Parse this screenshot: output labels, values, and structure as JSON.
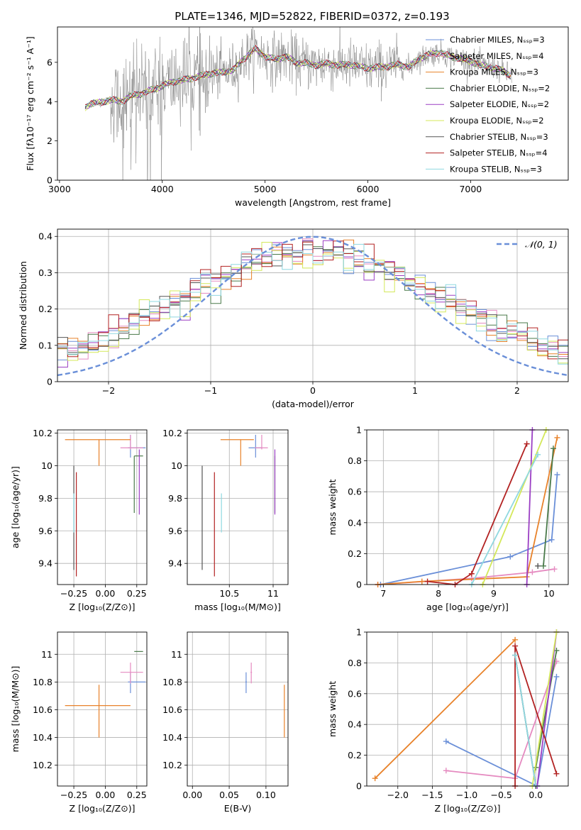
{
  "palette": {
    "chabrier_miles": "#6a8fd8",
    "salpeter_miles": "#e58ac0",
    "kroupa_miles": "#e8822a",
    "chabrier_elodie": "#4a7a4a",
    "salpeter_elodie": "#9b3fc4",
    "kroupa_elodie": "#d4e85a",
    "chabrier_stelib": "#555555",
    "salpeter_stelib": "#b22222",
    "kroupa_stelib": "#8fd8e0",
    "gauss": "#6a8fd8",
    "data": "#808080",
    "grid": "#b0b0b0"
  },
  "chart_data": [
    {
      "id": "spectrum",
      "type": "line",
      "title": "PLATE=1346, MJD=52822, FIBERID=0372, z=0.193",
      "xlabel": "wavelength [Angstrom, rest frame]",
      "ylabel": "Flux [fλ10⁻¹⁷ erg cm⁻² s⁻¹ A⁻¹]",
      "xlim": [
        2980,
        7950
      ],
      "ylim": [
        0,
        7.8
      ],
      "xticks": [
        3000,
        4000,
        5000,
        6000,
        7000
      ],
      "yticks": [
        0,
        2,
        4,
        6
      ],
      "grid": false,
      "legend_position": "right",
      "legend": [
        "Chabrier MILES, Nₛₛₚ=3",
        "Salpeter MILES, Nₛₛₚ=4",
        "Kroupa MILES, Nₛₛₚ=3",
        "Chabrier ELODIE, Nₛₛₚ=2",
        "Salpeter ELODIE, Nₛₛₚ=2",
        "Kroupa ELODIE, Nₛₛₚ=2",
        "Chabrier STELIB, Nₛₛₚ=3",
        "Salpeter STELIB, Nₛₛₚ=4",
        "Kroupa STELIB, Nₛₛₚ=3"
      ],
      "model_continuum": [
        [
          3250,
          3.7
        ],
        [
          3300,
          3.9
        ],
        [
          3400,
          3.95
        ],
        [
          3500,
          4.1
        ],
        [
          3600,
          4.0
        ],
        [
          3700,
          4.3
        ],
        [
          3800,
          4.4
        ],
        [
          3900,
          4.6
        ],
        [
          4000,
          4.8
        ],
        [
          4100,
          5.0
        ],
        [
          4200,
          5.1
        ],
        [
          4300,
          5.2
        ],
        [
          4400,
          5.35
        ],
        [
          4500,
          5.45
        ],
        [
          4600,
          5.5
        ],
        [
          4700,
          5.65
        ],
        [
          4800,
          6.2
        ],
        [
          4900,
          6.7
        ],
        [
          5000,
          6.3
        ],
        [
          5100,
          6.15
        ],
        [
          5200,
          6.3
        ],
        [
          5300,
          6.0
        ],
        [
          5400,
          5.95
        ],
        [
          5500,
          5.85
        ],
        [
          5600,
          5.95
        ],
        [
          5700,
          5.85
        ],
        [
          5800,
          5.9
        ],
        [
          5900,
          5.8
        ],
        [
          6000,
          5.7
        ],
        [
          6100,
          5.75
        ],
        [
          6200,
          5.8
        ],
        [
          6300,
          5.9
        ],
        [
          6400,
          5.75
        ],
        [
          6500,
          6.2
        ],
        [
          6600,
          6.4
        ],
        [
          6700,
          6.5
        ],
        [
          6800,
          6.3
        ],
        [
          6900,
          6.2
        ],
        [
          7000,
          6.05
        ],
        [
          7100,
          5.85
        ],
        [
          7200,
          5.75
        ],
        [
          7300,
          5.6
        ],
        [
          7400,
          5.3
        ]
      ]
    },
    {
      "id": "residuals",
      "type": "histogram",
      "xlabel": "(data-model)/error",
      "ylabel": "Normed distribution",
      "xlim": [
        -2.5,
        2.5
      ],
      "ylim": [
        0,
        0.42
      ],
      "xticks": [
        -2,
        -1,
        0,
        1,
        2
      ],
      "yticks": [
        0.0,
        0.1,
        0.2,
        0.3,
        0.4
      ],
      "grid": true,
      "legend_position": "top-right",
      "gauss_label": "𝒩(0, 1)",
      "gauss": {
        "mean": 0,
        "sigma": 1
      },
      "bin_width": 0.1
    },
    {
      "id": "age_vs_z",
      "type": "errorbar",
      "xlabel": "Z [log₁₀(Z/Z⊙)]",
      "ylabel": "age  [log₁₀(age/yr)]",
      "xlim": [
        -0.38,
        0.33
      ],
      "ylim": [
        9.27,
        10.22
      ],
      "xticks": [
        -0.25,
        0.0,
        0.25
      ],
      "xticklabels": [
        "−0.25",
        "0.00",
        "0.25"
      ],
      "yticks": [
        9.4,
        9.6,
        9.8,
        10.0,
        10.2
      ],
      "grid": true
    },
    {
      "id": "age_vs_mass",
      "type": "errorbar",
      "xlabel": "mass [log₁₀(M/M⊙)]",
      "ylabel": "",
      "xlim": [
        10.02,
        11.17
      ],
      "ylim": [
        9.27,
        10.22
      ],
      "xticks": [
        10.5,
        11.0
      ],
      "yticks": [
        9.4,
        9.6,
        9.8,
        10.0,
        10.2
      ],
      "grid": true
    },
    {
      "id": "weight_vs_age",
      "type": "line",
      "xlabel": "age  [log₁₀(age/yr)]",
      "ylabel": "mass weight",
      "xlim": [
        6.7,
        10.35
      ],
      "ylim": [
        0,
        1.0
      ],
      "xticks": [
        7,
        8,
        9,
        10
      ],
      "yticks": [
        0.0,
        0.2,
        0.4,
        0.6,
        0.8,
        1.0
      ],
      "grid": true
    },
    {
      "id": "mass_vs_z",
      "type": "errorbar",
      "xlabel": "Z [log₁₀(Z/Z⊙)]",
      "ylabel": "mass [log₁₀(M/M⊙)]",
      "xlim": [
        -0.38,
        0.33
      ],
      "ylim": [
        10.05,
        11.16
      ],
      "xticks": [
        -0.25,
        0.0,
        0.25
      ],
      "xticklabels": [
        "−0.25",
        "0.00",
        "0.25"
      ],
      "yticks": [
        10.2,
        10.4,
        10.6,
        10.8,
        11.0
      ],
      "grid": true
    },
    {
      "id": "mass_vs_ebv",
      "type": "errorbar",
      "xlabel": "E(B-V)",
      "ylabel": "",
      "xlim": [
        -0.007,
        0.13
      ],
      "ylim": [
        10.05,
        11.16
      ],
      "xticks": [
        0.0,
        0.05,
        0.1
      ],
      "xticklabels": [
        "0.00",
        "0.05",
        "0.10"
      ],
      "yticks": [
        10.2,
        10.4,
        10.6,
        10.8,
        11.0
      ],
      "grid": true
    },
    {
      "id": "weight_vs_z",
      "type": "line",
      "xlabel": "Z [log₁₀(Z/Z⊙)]",
      "ylabel": "mass weight",
      "xlim": [
        -2.45,
        0.47
      ],
      "ylim": [
        0,
        1.0
      ],
      "xticks": [
        -2.0,
        -1.5,
        -1.0,
        -0.5,
        0.0
      ],
      "xticklabels": [
        "−2.0",
        "−1.5",
        "−1.0",
        "−0.5",
        "0.0"
      ],
      "yticks": [
        0.0,
        0.2,
        0.4,
        0.6,
        0.8,
        1.0
      ],
      "grid": true
    }
  ],
  "models": [
    {
      "key": "chabrier_miles",
      "Z": 0.2,
      "Zerr": [
        0.02,
        0.12
      ],
      "age": 10.11,
      "ageErr": [
        0.06,
        0.08
      ],
      "mass": 10.8,
      "massErr": [
        0.08,
        0.07
      ],
      "ebv": 0.073,
      "ebvErr": [
        0.001,
        0.001
      ],
      "ages": [
        6.95,
        9.3,
        10.05,
        10.15
      ],
      "ageW": [
        0.0,
        0.18,
        0.29,
        0.71
      ],
      "zs": [
        -1.3,
        0.02,
        0.3
      ],
      "zW": [
        0.29,
        0.0,
        0.71
      ]
    },
    {
      "key": "salpeter_miles",
      "Z": 0.2,
      "Zerr": [
        0.08,
        0.1
      ],
      "age": 10.11,
      "ageErr": [
        0.01,
        0.08
      ],
      "mass": 10.87,
      "massErr": [
        0.08,
        0.07
      ],
      "ebv": 0.08,
      "ebvErr": [
        0.001,
        0.001
      ],
      "ages": [
        6.9,
        8.6,
        9.7,
        10.1
      ],
      "ageW": [
        0.0,
        0.04,
        0.08,
        0.1
      ],
      "zs": [
        -1.3,
        -0.3,
        0.3
      ],
      "zW": [
        0.1,
        0.05,
        0.81
      ]
    },
    {
      "key": "kroupa_miles",
      "Z": -0.05,
      "Zerr": [
        0.27,
        0.25
      ],
      "age": 10.16,
      "ageErr": [
        0.16,
        0.0
      ],
      "mass": 10.63,
      "massErr": [
        0.23,
        0.15
      ],
      "ebv": 0.125,
      "ebvErr": [
        0.0,
        0.0
      ],
      "ages": [
        6.9,
        7.7,
        9.6,
        10.15
      ],
      "ageW": [
        0.0,
        0.02,
        0.05,
        0.95
      ],
      "zs": [
        -2.33,
        -0.3
      ],
      "zW": [
        0.05,
        0.95
      ]
    },
    {
      "key": "chabrier_elodie",
      "Z": 0.23,
      "Zerr": [
        0.0,
        0.07
      ],
      "age": 10.06,
      "ageErr": [
        0.35,
        0.0
      ],
      "mass": 11.02,
      "massErr": [
        0.0,
        0.0
      ],
      "ebv": 0.0,
      "ebvErr": [
        0.0,
        0.0
      ],
      "ages": [
        9.9,
        10.08
      ],
      "ageW": [
        0.12,
        0.88
      ],
      "zs": [
        0.0,
        0.3
      ],
      "zW": [
        0.12,
        0.88
      ]
    },
    {
      "key": "salpeter_elodie",
      "Z": 0.27,
      "Zerr": [
        0.0,
        0.0
      ],
      "age": 9.7,
      "ageErr": [
        0.0,
        0.4
      ],
      "mass": 11.02,
      "massErr": [
        0.0,
        0.0
      ],
      "ebv": 0.0,
      "ebvErr": [
        0.0,
        0.0
      ],
      "ages": [
        9.6,
        9.7
      ],
      "ageW": [
        0.0,
        1.0
      ],
      "zs": [
        0.02,
        0.3
      ],
      "zW": [
        0.0,
        1.0
      ]
    },
    {
      "key": "kroupa_elodie",
      "Z": 0.25,
      "Zerr": [
        0.0,
        0.0
      ],
      "age": 9.99,
      "ageErr": [
        0.0,
        0.0
      ],
      "mass": 10.97,
      "massErr": [
        0.0,
        0.0
      ],
      "ebv": 0.0,
      "ebvErr": [
        0.0,
        0.0
      ],
      "ages": [
        8.8,
        9.95
      ],
      "ageW": [
        0.0,
        1.0
      ],
      "zs": [
        -0.05,
        0.3
      ],
      "zW": [
        0.0,
        1.0
      ]
    },
    {
      "key": "chabrier_stelib",
      "Z": -0.25,
      "Zerr": [
        0.0,
        0.0
      ],
      "age": 9.44,
      "ageErr": [
        0.08,
        0.56
      ],
      "mass": 10.19,
      "massErr": [
        0.0,
        0.0
      ],
      "ebv": 0.0,
      "ebvErr": [
        0.0,
        0.0
      ],
      "ages": [
        9.8
      ],
      "ageW": [
        0.12
      ],
      "zs": [
        -0.3,
        0.0
      ],
      "zW": [
        0.85,
        0.0
      ]
    },
    {
      "key": "salpeter_stelib",
      "Z": -0.23,
      "Zerr": [
        0.0,
        0.0
      ],
      "age": 9.44,
      "ageErr": [
        0.12,
        0.52
      ],
      "mass": 10.33,
      "massErr": [
        0.0,
        0.0
      ],
      "ebv": 0.0,
      "ebvErr": [
        0.0,
        0.0
      ],
      "ages": [
        7.8,
        8.3,
        8.6,
        9.6
      ],
      "ageW": [
        0.02,
        0.0,
        0.07,
        0.91
      ],
      "zs": [
        -0.3,
        -0.3,
        0.3
      ],
      "zW": [
        0.0,
        0.91,
        0.08
      ]
    },
    {
      "key": "kroupa_stelib",
      "Z": -0.25,
      "Zerr": [
        0.0,
        0.0
      ],
      "age": 9.71,
      "ageErr": [
        0.12,
        0.12
      ],
      "mass": 10.41,
      "massErr": [
        0.0,
        0.0
      ],
      "ebv": 0.0,
      "ebvErr": [
        0.0,
        0.0
      ],
      "ages": [
        8.6,
        9.8
      ],
      "ageW": [
        0.0,
        0.84
      ],
      "zs": [
        -0.3,
        0.0
      ],
      "zW": [
        0.85,
        0.0
      ]
    }
  ]
}
